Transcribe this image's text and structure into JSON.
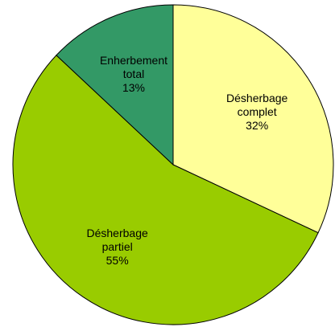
{
  "chart_data": {
    "type": "pie",
    "categories": [
      "Désherbage complet",
      "Désherbage partiel",
      "Enherbement total"
    ],
    "values": [
      32,
      55,
      13
    ],
    "value_labels": [
      "32%",
      "55%",
      "13%"
    ],
    "colors": [
      "#ffff99",
      "#99cc00",
      "#339966"
    ]
  }
}
